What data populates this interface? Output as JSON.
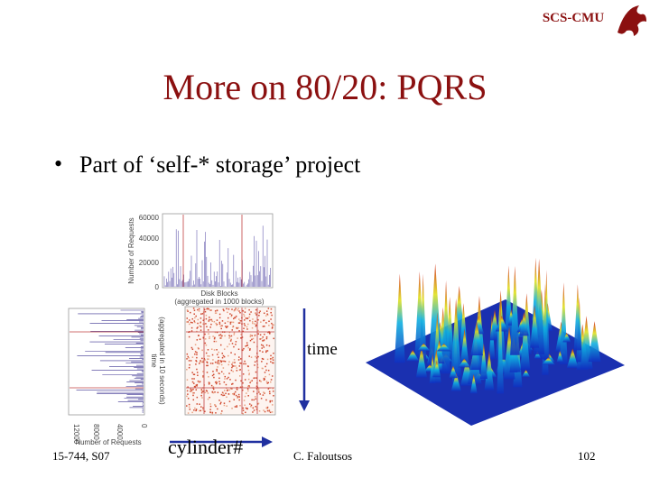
{
  "header": {
    "org": "SCS-CMU"
  },
  "title": "More on 80/20: PQRS",
  "bullets": [
    "Part of ‘self-* storage’ project"
  ],
  "figure": {
    "top_plot": {
      "y_label": "Number of Requests",
      "y_ticks": [
        "60000",
        "40000",
        "20000",
        "0"
      ],
      "x_label": "Disk Blocks",
      "x_label_note": "(aggregated in 1000 blocks)"
    },
    "side_plot": {
      "x_ticks": [
        "12000",
        "8000",
        "4000",
        "0"
      ],
      "x_label": "Number of Requests",
      "y_label": "time",
      "y_label_note": "(aggregated in 10 seconds)"
    },
    "time_label": "time",
    "cylinder_label": "cylinder#"
  },
  "footer": {
    "course": "15-744, S07",
    "author": "C. Faloutsos",
    "page": "102"
  }
}
